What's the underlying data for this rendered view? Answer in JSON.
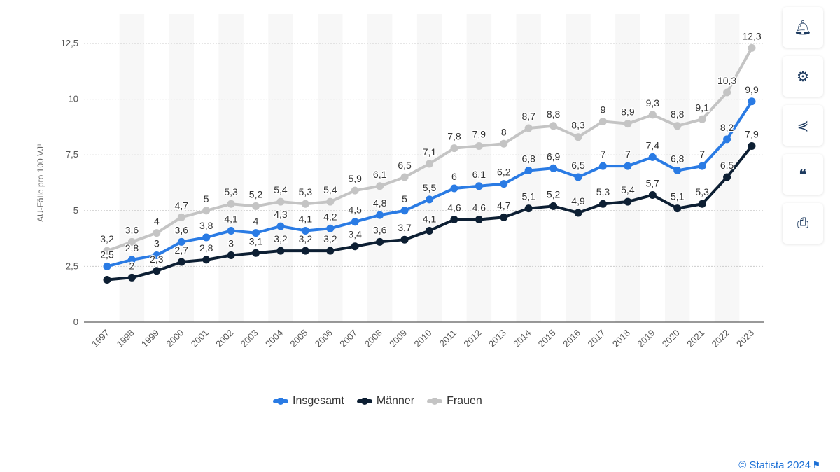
{
  "chart_data": {
    "type": "line",
    "ylabel": "AU-Fälle pro 100 VJ¹",
    "xlabel": "",
    "ylim": [
      0,
      12.5
    ],
    "yticks": [
      "0",
      "2,5",
      "5",
      "7,5",
      "10",
      "12,5"
    ],
    "grid": true,
    "legend_position": "bottom",
    "categories": [
      "1997",
      "1998",
      "1999",
      "2000",
      "2001",
      "2002",
      "2003",
      "2004",
      "2005",
      "2006",
      "2007",
      "2008",
      "2009",
      "2010",
      "2011",
      "2012",
      "2013",
      "2014",
      "2015",
      "2016",
      "2017",
      "2018",
      "2019",
      "2020",
      "2021",
      "2022",
      "2023"
    ],
    "series": [
      {
        "name": "Insgesamt",
        "color": "#2a7be4",
        "values": [
          2.5,
          2.8,
          3,
          3.6,
          3.8,
          4.1,
          4,
          4.3,
          4.1,
          4.2,
          4.5,
          4.8,
          5,
          5.5,
          6,
          6.1,
          6.2,
          6.8,
          6.9,
          6.5,
          7,
          7,
          7.4,
          6.8,
          7,
          8.2,
          9.9
        ]
      },
      {
        "name": "Männer",
        "color": "#0d1f33",
        "values": [
          1.9,
          2,
          2.3,
          2.7,
          2.8,
          3,
          3.1,
          3.2,
          3.2,
          3.2,
          3.4,
          3.6,
          3.7,
          4.1,
          4.6,
          4.6,
          4.7,
          5.1,
          5.2,
          4.9,
          5.3,
          5.4,
          5.7,
          5.1,
          5.3,
          6.5,
          7.9
        ]
      },
      {
        "name": "Frauen",
        "color": "#c4c4c4",
        "values": [
          3.2,
          3.6,
          4,
          4.7,
          5,
          5.3,
          5.2,
          5.4,
          5.3,
          5.4,
          5.9,
          6.1,
          6.5,
          7.1,
          7.8,
          7.9,
          8,
          8.7,
          8.8,
          8.3,
          9,
          8.9,
          9.3,
          8.8,
          9.1,
          10.3,
          12.3
        ]
      }
    ]
  },
  "credit": "© Statista 2024",
  "sidebar": {
    "icons": [
      "bell-icon",
      "gear-icon",
      "share-icon",
      "quote-icon",
      "print-icon"
    ]
  }
}
